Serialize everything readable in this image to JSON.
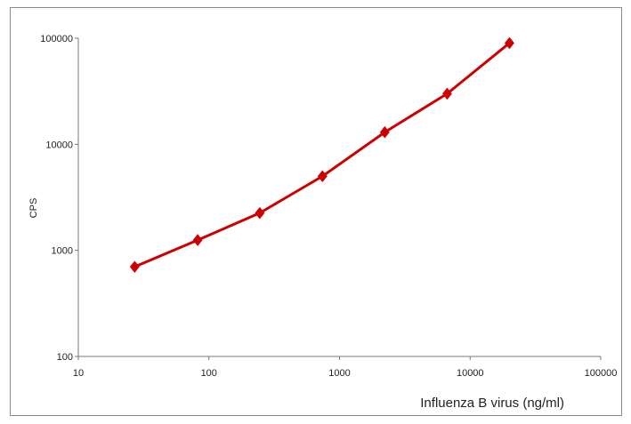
{
  "chart_data": {
    "type": "line",
    "title": "",
    "xlabel": "Influenza B virus (ng/ml)",
    "ylabel": "CPS",
    "xscale": "log",
    "yscale": "log",
    "xlim": [
      10,
      100000
    ],
    "ylim": [
      100,
      100000
    ],
    "xticks": [
      10,
      100,
      1000,
      10000,
      100000
    ],
    "yticks": [
      100,
      1000,
      10000,
      100000
    ],
    "x_tick_labels": [
      "10",
      "100",
      "1000",
      "10000",
      "100000"
    ],
    "y_tick_labels": [
      "100",
      "1000",
      "10000",
      "100000"
    ],
    "grid": false,
    "legend": "none",
    "series": [
      {
        "color": "#cc0000",
        "marker": "diamond",
        "x": [
          27,
          82,
          245,
          740,
          2220,
          6670,
          20000
        ],
        "y": [
          700,
          1250,
          2250,
          5000,
          13000,
          30000,
          90000
        ]
      }
    ]
  }
}
